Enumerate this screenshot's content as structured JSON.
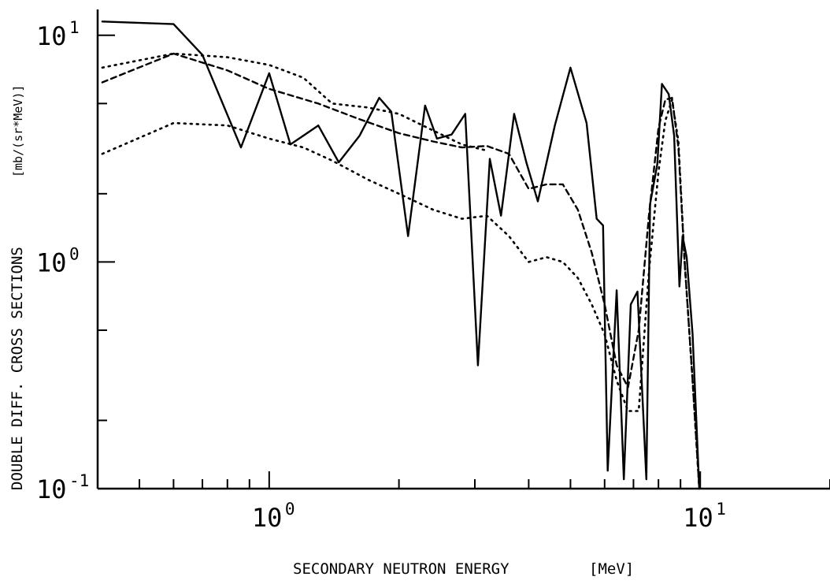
{
  "chart_data": {
    "type": "line",
    "title": "",
    "xlabel": "SECONDARY NEUTRON ENERGY",
    "xunit": "[MeV]",
    "ylabel": "DOUBLE DIFF. CROSS SECTIONS",
    "yunit": "[mb/(sr*MeV)]",
    "xscale": "log",
    "yscale": "log",
    "xlim": [
      0.4,
      20
    ],
    "ylim": [
      0.1,
      12
    ],
    "grid": false,
    "legend": "none",
    "x_ticks": [
      {
        "value": 1,
        "base": "10",
        "exp": "0"
      },
      {
        "value": 10,
        "base": "10",
        "exp": "1"
      }
    ],
    "y_ticks": [
      {
        "value": 0.1,
        "base": "10",
        "exp": "-1"
      },
      {
        "value": 1,
        "base": "10",
        "exp": "0"
      },
      {
        "value": 10,
        "base": "10",
        "exp": "1"
      }
    ],
    "series": [
      {
        "style": "solid",
        "x": [
          0.41,
          0.6,
          0.7,
          0.86,
          1.0,
          1.12,
          1.3,
          1.45,
          1.62,
          1.8,
          1.92,
          2.1,
          2.3,
          2.45,
          2.65,
          2.85,
          3.05,
          3.25,
          3.45,
          3.7,
          3.95,
          4.2,
          4.6,
          5.0,
          5.45,
          5.75,
          5.95,
          6.1,
          6.4,
          6.65,
          6.9,
          7.15,
          7.5,
          7.65,
          7.95,
          8.15,
          8.45,
          8.7,
          8.95,
          9.1,
          9.3,
          9.6,
          9.95
        ],
        "y": [
          11.5,
          11.2,
          8.2,
          3.2,
          6.8,
          3.3,
          4.0,
          2.75,
          3.6,
          5.3,
          4.6,
          1.3,
          4.9,
          3.5,
          3.65,
          4.5,
          0.35,
          2.85,
          1.6,
          4.5,
          2.75,
          1.85,
          4.0,
          7.2,
          4.1,
          1.55,
          1.45,
          0.12,
          0.75,
          0.11,
          0.65,
          0.74,
          0.11,
          1.8,
          2.7,
          6.1,
          5.5,
          3.6,
          0.78,
          1.3,
          1.05,
          0.48,
          0.1
        ]
      },
      {
        "style": "dashed",
        "x": [
          0.41,
          0.6,
          0.8,
          1.0,
          1.3,
          1.6,
          2.0,
          2.4,
          2.8,
          3.2,
          3.6,
          4.0,
          4.4,
          4.8,
          5.2,
          5.6,
          6.0,
          6.4,
          6.8,
          7.2,
          7.6,
          8.0,
          8.3,
          8.6,
          8.9,
          9.2,
          9.6,
          9.95
        ],
        "y": [
          6.2,
          8.3,
          7.0,
          5.8,
          5.0,
          4.3,
          3.7,
          3.4,
          3.2,
          3.25,
          3.0,
          2.1,
          2.2,
          2.2,
          1.7,
          1.1,
          0.65,
          0.35,
          0.28,
          0.5,
          1.6,
          3.9,
          5.2,
          5.3,
          3.2,
          1.0,
          0.3,
          0.1
        ]
      },
      {
        "style": "dotted",
        "x": [
          0.41,
          0.6,
          0.8,
          1.0,
          1.2,
          1.4,
          1.7,
          2.0,
          2.4,
          2.8,
          3.2,
          3.6,
          4.0,
          4.4,
          4.8,
          5.2,
          5.6,
          6.0,
          6.4,
          6.8,
          7.2,
          7.6,
          8.0,
          8.3,
          8.6,
          8.9,
          9.2,
          9.6,
          9.95
        ],
        "y": [
          3.0,
          4.1,
          4.0,
          3.5,
          3.2,
          2.8,
          2.3,
          2.0,
          1.7,
          1.55,
          1.6,
          1.3,
          1.0,
          1.05,
          1.0,
          0.85,
          0.65,
          0.48,
          0.3,
          0.22,
          0.22,
          0.9,
          2.5,
          4.2,
          5.2,
          3.4,
          1.0,
          0.3,
          0.1
        ]
      },
      {
        "style": "dotted",
        "x": [
          0.41,
          0.6,
          0.8,
          1.0,
          1.2,
          1.4,
          1.7,
          2.0,
          2.4,
          2.8,
          3.2
        ],
        "y": [
          7.2,
          8.3,
          8.0,
          7.4,
          6.5,
          5.0,
          4.8,
          4.5,
          3.8,
          3.3,
          3.1
        ]
      }
    ]
  }
}
